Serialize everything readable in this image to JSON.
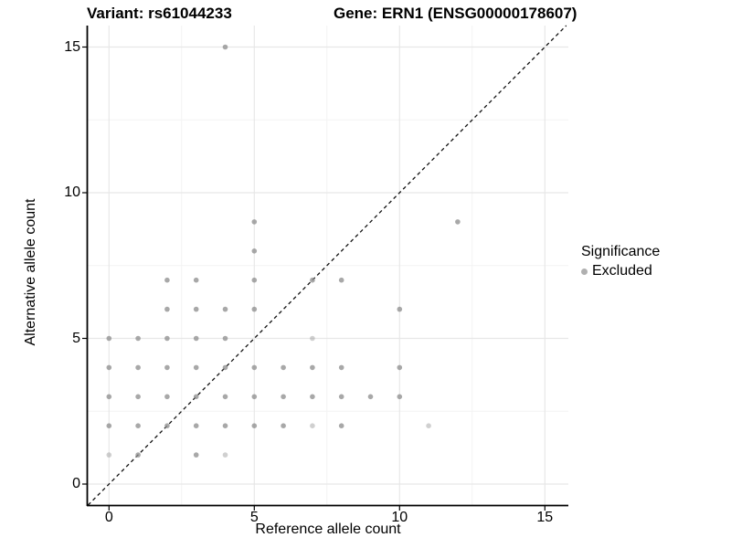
{
  "chart_data": {
    "type": "scatter",
    "title_left": "Variant: rs61044233",
    "title_right": "Gene: ERN1 (ENSG00000178607)",
    "xlabel": "Reference allele count",
    "ylabel": "Alternative allele count",
    "xlim": [
      -0.75,
      15.75
    ],
    "ylim": [
      -0.75,
      15.75
    ],
    "x_ticks": [
      0,
      5,
      10,
      15
    ],
    "y_ticks": [
      0,
      5,
      10,
      15
    ],
    "minor_gridlines": [
      2.5,
      7.5,
      12.5
    ],
    "grid": true,
    "identity_line": {
      "style": "dashed",
      "color": "#111111"
    },
    "legend": {
      "title": "Significance",
      "position": "right",
      "items": [
        {
          "label": "Excluded",
          "color": "#b0b0b0"
        }
      ]
    },
    "style": {
      "point_color": "#8f8f8f",
      "point_opacity_normal": 0.78,
      "point_opacity_light": 0.42,
      "major_grid_color": "#e7e7e7",
      "minor_grid_color": "#f3f3f3",
      "axis_color": "#000000",
      "background": "#ffffff"
    },
    "series": [
      {
        "name": "Excluded",
        "color": "#b0b0b0",
        "points": [
          [
            4,
            15
          ],
          [
            5,
            9
          ],
          [
            12,
            9
          ],
          [
            5,
            8
          ],
          [
            2,
            7
          ],
          [
            3,
            7
          ],
          [
            5,
            7
          ],
          [
            7,
            7
          ],
          [
            8,
            7
          ],
          [
            2,
            6
          ],
          [
            3,
            6
          ],
          [
            4,
            6
          ],
          [
            5,
            6
          ],
          [
            10,
            6
          ],
          [
            0,
            5
          ],
          [
            1,
            5
          ],
          [
            2,
            5
          ],
          [
            3,
            5
          ],
          [
            4,
            5
          ],
          [
            7,
            5,
            1
          ],
          [
            0,
            4
          ],
          [
            1,
            4
          ],
          [
            2,
            4
          ],
          [
            3,
            4
          ],
          [
            4,
            4
          ],
          [
            5,
            4
          ],
          [
            6,
            4
          ],
          [
            7,
            4
          ],
          [
            8,
            4
          ],
          [
            10,
            4
          ],
          [
            0,
            3
          ],
          [
            1,
            3
          ],
          [
            2,
            3
          ],
          [
            3,
            3
          ],
          [
            4,
            3
          ],
          [
            5,
            3
          ],
          [
            6,
            3
          ],
          [
            7,
            3
          ],
          [
            8,
            3
          ],
          [
            9,
            3
          ],
          [
            10,
            3
          ],
          [
            0,
            2
          ],
          [
            1,
            2
          ],
          [
            2,
            2
          ],
          [
            3,
            2
          ],
          [
            4,
            2
          ],
          [
            5,
            2
          ],
          [
            6,
            2
          ],
          [
            7,
            2,
            1
          ],
          [
            8,
            2
          ],
          [
            11,
            2,
            1
          ],
          [
            0,
            1,
            1
          ],
          [
            1,
            1
          ],
          [
            3,
            1
          ],
          [
            4,
            1,
            1
          ]
        ]
      }
    ]
  }
}
